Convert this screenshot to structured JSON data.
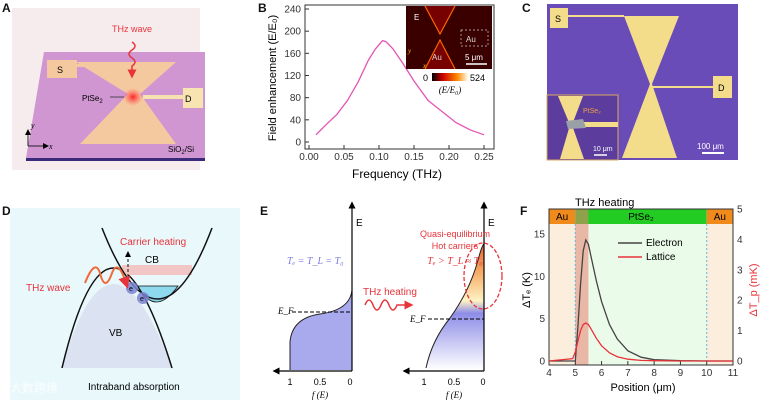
{
  "panels": {
    "a": {
      "label": "A",
      "thz": "THz wave",
      "source": "S",
      "drain": "D",
      "material": "PtSe",
      "material_sub": "2",
      "substrate": "SiO",
      "substrate_sub": "2",
      "substrate_tail": "/Si",
      "axis_y": "y",
      "axis_x": "x"
    },
    "b": {
      "label": "B",
      "inset_e": "E",
      "inset_au1": "Au",
      "inset_au2": "Au",
      "inset_scale": "5 μm",
      "inset_y": "y",
      "inset_x": "x",
      "cbar_min": "0",
      "cbar_max": "524",
      "cbar_label": "(E/E₀)"
    },
    "c": {
      "label": "C",
      "source": "S",
      "drain": "D",
      "scale": "100 μm",
      "inset_material": "PtSe₂",
      "inset_scale": "10 μm"
    },
    "d": {
      "label": "D",
      "carrier": "Carrier heating",
      "cb": "CB",
      "vb": "VB",
      "thz": "THz wave",
      "e1": "e",
      "e2": "e",
      "caption": "Intraband absorption",
      "watermark": "大数跨境"
    },
    "e": {
      "label": "E",
      "left_eq": "Tₑ = T_L = T₀",
      "e_axis": "E",
      "ef": "E_F",
      "ticks": [
        "1",
        "0.5",
        "0"
      ],
      "xlabel": "f (E)",
      "thz": "THz heating",
      "quasi": "Quasi-equilibrium",
      "hot": "Hot carriers",
      "right_eq": "Tₑ > T_L ≈ T₀"
    },
    "f": {
      "label": "F",
      "title": "THz heating",
      "bar": [
        "Au",
        "PtSe₂",
        "Au"
      ]
    }
  },
  "colors": {
    "accent_red": "#e8333a",
    "pink_curve": "#e455b4",
    "purple": "#6a4cb8",
    "gold": "#f3dc8a"
  },
  "chart_data": [
    {
      "type": "line",
      "title": "",
      "xlabel": "Frequency (THz)",
      "ylabel": "Field enhancement (E/E₀)",
      "xlim": [
        0,
        0.25
      ],
      "ylim": [
        0,
        240
      ],
      "xticks": [
        "0.00",
        "0.05",
        "0.10",
        "0.15",
        "0.20",
        "0.25"
      ],
      "yticks": [
        "0",
        "40",
        "80",
        "120",
        "160",
        "200",
        "240"
      ],
      "x": [
        0.01,
        0.025,
        0.04,
        0.055,
        0.07,
        0.085,
        0.095,
        0.105,
        0.11,
        0.12,
        0.135,
        0.15,
        0.17,
        0.19,
        0.21,
        0.23,
        0.25
      ],
      "series": [
        {
          "name": "Field enhancement",
          "values": [
            13,
            32,
            50,
            75,
            108,
            148,
            168,
            183,
            181,
            168,
            140,
            110,
            75,
            55,
            35,
            22,
            13
          ]
        }
      ]
    },
    {
      "type": "line",
      "title": "THz heating",
      "xlabel": "Position (μm)",
      "ylabel": "ΔTₑ (K)",
      "ylabel_right": "ΔT_p (mK)",
      "xlim": [
        4,
        11
      ],
      "ylim": [
        0,
        18
      ],
      "ylim_right": [
        0,
        5
      ],
      "xticks": [
        "4",
        "5",
        "6",
        "7",
        "8",
        "9",
        "10",
        "11"
      ],
      "yticks": [
        "0",
        "5",
        "10",
        "15"
      ],
      "yticks_right": [
        "0",
        "1",
        "2",
        "3",
        "4",
        "5"
      ],
      "regions": [
        {
          "name": "Au",
          "from": 4,
          "to": 5
        },
        {
          "name": "PtSe₂",
          "from": 5,
          "to": 10
        },
        {
          "name": "Au",
          "from": 10,
          "to": 11
        }
      ],
      "heating_region": [
        5,
        5.5
      ],
      "x": [
        4,
        4.9,
        5.0,
        5.1,
        5.2,
        5.3,
        5.4,
        5.5,
        5.6,
        5.8,
        6.0,
        6.3,
        6.6,
        7.0,
        7.5,
        8.0,
        9.0,
        10,
        11
      ],
      "series": [
        {
          "name": "Electron",
          "axis": "left",
          "color": "#444444",
          "values": [
            0,
            0,
            0,
            4,
            9,
            13,
            14.3,
            13.8,
            12.3,
            9.5,
            7,
            4.3,
            2.6,
            1.2,
            0.45,
            0.15,
            0.03,
            0,
            0
          ]
        },
        {
          "name": "Lattice",
          "axis": "right",
          "color": "#e8333a",
          "values": [
            0,
            0.08,
            0.3,
            0.65,
            1.0,
            1.2,
            1.25,
            1.2,
            1.05,
            0.75,
            0.5,
            0.27,
            0.14,
            0.06,
            0.02,
            0.01,
            0,
            0,
            0
          ]
        }
      ]
    }
  ]
}
